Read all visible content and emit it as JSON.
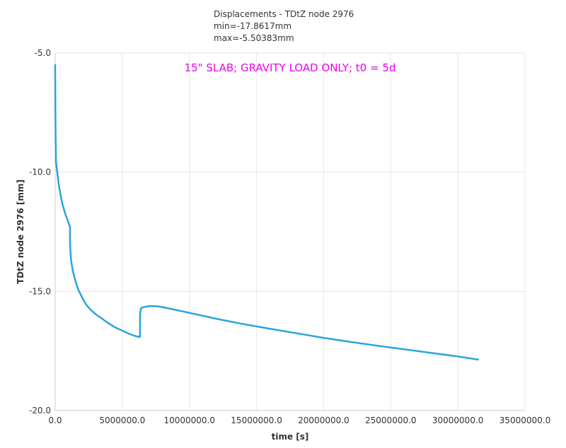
{
  "chart_data": {
    "type": "line",
    "title_lines": [
      "Displacements - TDtZ node 2976",
      "min=-17.8617mm",
      "max=-5.50383mm"
    ],
    "annotation": "15\" SLAB; GRAVITY LOAD ONLY; t0 = 5d",
    "xlabel": "time [s]",
    "ylabel": "TDtZ node 2976 [mm]",
    "xlim": [
      0,
      35000000
    ],
    "ylim": [
      -20,
      -5
    ],
    "x_ticks": [
      0,
      5000000,
      10000000,
      15000000,
      20000000,
      25000000,
      30000000,
      35000000
    ],
    "x_tick_labels": [
      "0.0",
      "5000000.0",
      "10000000.0",
      "15000000.0",
      "20000000.0",
      "25000000.0",
      "30000000.0",
      "35000000.0"
    ],
    "y_ticks": [
      -5,
      -10,
      -15,
      -20
    ],
    "y_tick_labels": [
      "-5.0",
      "-10.0",
      "-15.0",
      "-20.0"
    ],
    "grid": true,
    "colors": {
      "series": "#2ba3dd",
      "annotation": "#ee00ee",
      "grid": "#e6e6e6",
      "text": "#333333"
    },
    "series": [
      {
        "x": [
          0,
          10000,
          30000,
          60000,
          100000,
          150000,
          250000,
          350000,
          450000,
          550000,
          650000,
          750000,
          850000,
          950000,
          1050000,
          1100000,
          1110000,
          1150000,
          1200000,
          1300000,
          1500000,
          1700000,
          2000000,
          2300000,
          2600000,
          3000000,
          3500000,
          4000000,
          4500000,
          5000000,
          5500000,
          6000000,
          6310000,
          6330000,
          6400000,
          6600000,
          7000000,
          7500000,
          8000000,
          9000000,
          10000000,
          12000000,
          14000000,
          16000000,
          18000000,
          20000000,
          22000000,
          24000000,
          26000000,
          28000000,
          30000000,
          31500000
        ],
        "y": [
          -5.50383,
          -7.0,
          -8.5,
          -9.55,
          -9.75,
          -10.0,
          -10.45,
          -10.8,
          -11.1,
          -11.35,
          -11.55,
          -11.75,
          -11.9,
          -12.05,
          -12.2,
          -12.3,
          -13.0,
          -13.45,
          -13.75,
          -14.1,
          -14.55,
          -14.9,
          -15.25,
          -15.55,
          -15.75,
          -15.95,
          -16.15,
          -16.35,
          -16.52,
          -16.65,
          -16.78,
          -16.88,
          -16.92,
          -15.9,
          -15.7,
          -15.66,
          -15.62,
          -15.62,
          -15.66,
          -15.78,
          -15.9,
          -16.15,
          -16.37,
          -16.57,
          -16.76,
          -16.95,
          -17.12,
          -17.28,
          -17.43,
          -17.58,
          -17.73,
          -17.8617
        ]
      }
    ]
  }
}
